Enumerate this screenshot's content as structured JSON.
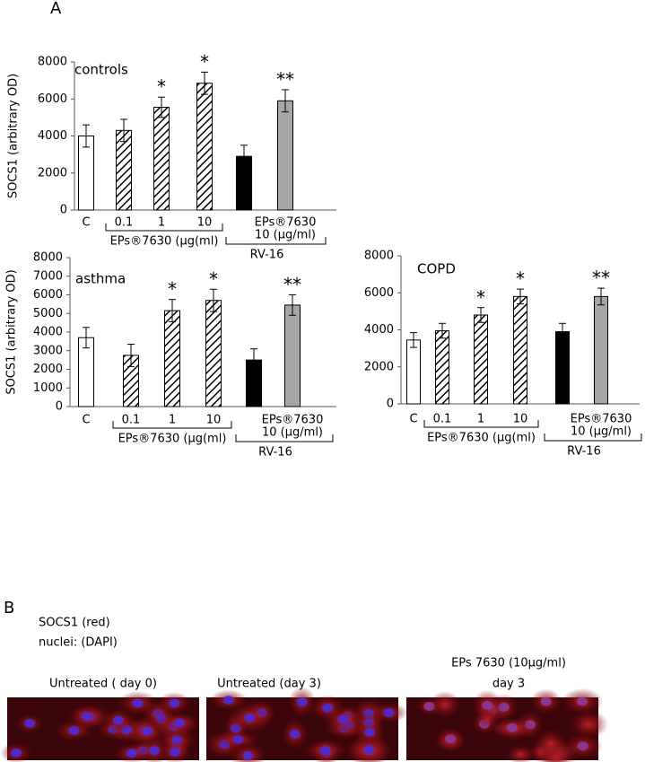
{
  "panel_labels": [
    "A",
    "B"
  ],
  "chart_data": [
    {
      "type": "bar",
      "title": "controls",
      "y_label": "SOCS1 (arbitrary OD)",
      "categories": [
        "C",
        "0.1",
        "1",
        "10",
        null,
        null
      ],
      "values": [
        4000,
        4300,
        5550,
        6850,
        2900,
        5900
      ],
      "errors": [
        600,
        600,
        550,
        600,
        600,
        600
      ],
      "annotations": [
        null,
        null,
        "*",
        "*",
        null,
        "**"
      ],
      "colors": [
        "#ffffff",
        "#ffffff",
        "#ffffff",
        "#ffffff",
        "#000000",
        "#a6a6a6"
      ],
      "hatched": [
        false,
        true,
        true,
        true,
        false,
        false
      ],
      "treatment_label": [
        "EPs®7630",
        "10 (µg/ml)"
      ],
      "group_labels": [
        "EPs®7630 (µg(ml)",
        "RV-16"
      ],
      "ylim": [
        0,
        8000
      ],
      "yticks": [
        0,
        2000,
        4000,
        6000,
        8000
      ]
    },
    {
      "type": "bar",
      "title": "asthma",
      "y_label": "SOCS1 (arbitrary OD)",
      "categories": [
        "C",
        "0.1",
        "1",
        "10",
        null,
        null
      ],
      "values": [
        3700,
        2750,
        5150,
        5700,
        2500,
        5450
      ],
      "errors": [
        550,
        600,
        600,
        600,
        600,
        550
      ],
      "annotations": [
        null,
        null,
        "*",
        "*",
        null,
        "**"
      ],
      "colors": [
        "#ffffff",
        "#ffffff",
        "#ffffff",
        "#ffffff",
        "#000000",
        "#a6a6a6"
      ],
      "hatched": [
        false,
        true,
        true,
        true,
        false,
        false
      ],
      "treatment_label": [
        "EPs®7630",
        "10 (µg/ml)"
      ],
      "group_labels": [
        "EPs®7630 (µg(ml)",
        "RV-16"
      ],
      "ylim": [
        0,
        8000
      ],
      "yticks": [
        0,
        1000,
        2000,
        3000,
        4000,
        5000,
        6000,
        7000,
        8000
      ]
    },
    {
      "type": "bar",
      "title": "COPD",
      "categories": [
        "C",
        "0.1",
        "1",
        "10",
        null,
        null
      ],
      "values": [
        3450,
        3950,
        4800,
        5800,
        3900,
        5800
      ],
      "errors": [
        400,
        400,
        400,
        400,
        450,
        450
      ],
      "annotations": [
        null,
        null,
        "*",
        "*",
        null,
        "**"
      ],
      "colors": [
        "#ffffff",
        "#ffffff",
        "#ffffff",
        "#ffffff",
        "#000000",
        "#a6a6a6"
      ],
      "hatched": [
        false,
        true,
        true,
        true,
        false,
        false
      ],
      "treatment_label": [
        "EPs®7630",
        "10 (µg/ml)"
      ],
      "group_labels": [
        "EPs®7630 (µg(ml)",
        "RV-16"
      ],
      "ylim": [
        0,
        8000
      ],
      "yticks": [
        0,
        2000,
        4000,
        6000,
        8000
      ]
    }
  ],
  "panel_b": {
    "legend": [
      "SOCS1 (red)",
      "nuclei: (DAPI)"
    ],
    "images": [
      {
        "title": [
          "Untreated ( day 0)"
        ]
      },
      {
        "title": [
          "Untreated (day 3)"
        ]
      },
      {
        "title": [
          "EPs 7630 (10µg/ml)",
          "day 3"
        ]
      }
    ]
  }
}
